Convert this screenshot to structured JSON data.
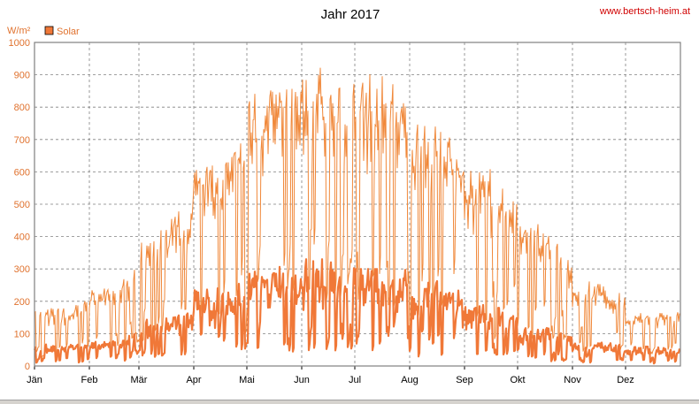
{
  "header": {
    "title": "Jahr 2017",
    "website": "www.bertsch-heim.at"
  },
  "chart_data": {
    "type": "line",
    "title": "Jahr 2017",
    "ylabel": "W/m²",
    "xlabel": "",
    "ylim": [
      0,
      1000
    ],
    "yticks": [
      0,
      100,
      200,
      300,
      400,
      500,
      600,
      700,
      800,
      900,
      1000
    ],
    "xlim_days": [
      0,
      365
    ],
    "month_labels": [
      "Jän",
      "Feb",
      "Mär",
      "Apr",
      "Mai",
      "Jun",
      "Jul",
      "Aug",
      "Sep",
      "Okt",
      "Nov",
      "Dez"
    ],
    "month_start_days": [
      0,
      31,
      59,
      90,
      120,
      151,
      181,
      212,
      243,
      273,
      304,
      334
    ],
    "grid": true,
    "legend_position": "top-left",
    "colors": {
      "series_thin": "#f0883a",
      "series_thick": "#f07838",
      "grid": "#808080",
      "axis_text": "#e0722e",
      "frame": "#808080"
    },
    "series": [
      {
        "name": "Solar",
        "description": "daily max (thin line) and daily mean (thick line) — envelope estimated from monthly levels",
        "monthly_max_envelope": [
          {
            "month": "Jän",
            "max": 230,
            "typical_max": 170
          },
          {
            "month": "Feb",
            "max": 300,
            "typical_max": 230
          },
          {
            "month": "Mär",
            "max": 500,
            "typical_max": 420
          },
          {
            "month": "Apr",
            "max": 700,
            "typical_max": 600
          },
          {
            "month": "Mai",
            "max": 960,
            "typical_max": 820
          },
          {
            "month": "Jun",
            "max": 960,
            "typical_max": 880
          },
          {
            "month": "Jul",
            "max": 950,
            "typical_max": 860
          },
          {
            "month": "Aug",
            "max": 860,
            "typical_max": 720
          },
          {
            "month": "Sep",
            "max": 670,
            "typical_max": 580
          },
          {
            "month": "Okt",
            "max": 480,
            "typical_max": 420
          },
          {
            "month": "Nov",
            "max": 330,
            "typical_max": 250
          },
          {
            "month": "Dez",
            "max": 190,
            "typical_max": 160
          }
        ],
        "monthly_mean_envelope": [
          {
            "month": "Jän",
            "max": 85,
            "typical": 50
          },
          {
            "month": "Feb",
            "max": 110,
            "typical": 60
          },
          {
            "month": "Mär",
            "max": 200,
            "typical": 110
          },
          {
            "month": "Apr",
            "max": 300,
            "typical": 180
          },
          {
            "month": "Mai",
            "max": 330,
            "typical": 230
          },
          {
            "month": "Jun",
            "max": 330,
            "typical": 250
          },
          {
            "month": "Jul",
            "max": 300,
            "typical": 240
          },
          {
            "month": "Aug",
            "max": 290,
            "typical": 200
          },
          {
            "month": "Sep",
            "max": 220,
            "typical": 140
          },
          {
            "month": "Okt",
            "max": 160,
            "typical": 90
          },
          {
            "month": "Nov",
            "max": 110,
            "typical": 55
          },
          {
            "month": "Dez",
            "max": 90,
            "typical": 45
          }
        ]
      }
    ]
  }
}
